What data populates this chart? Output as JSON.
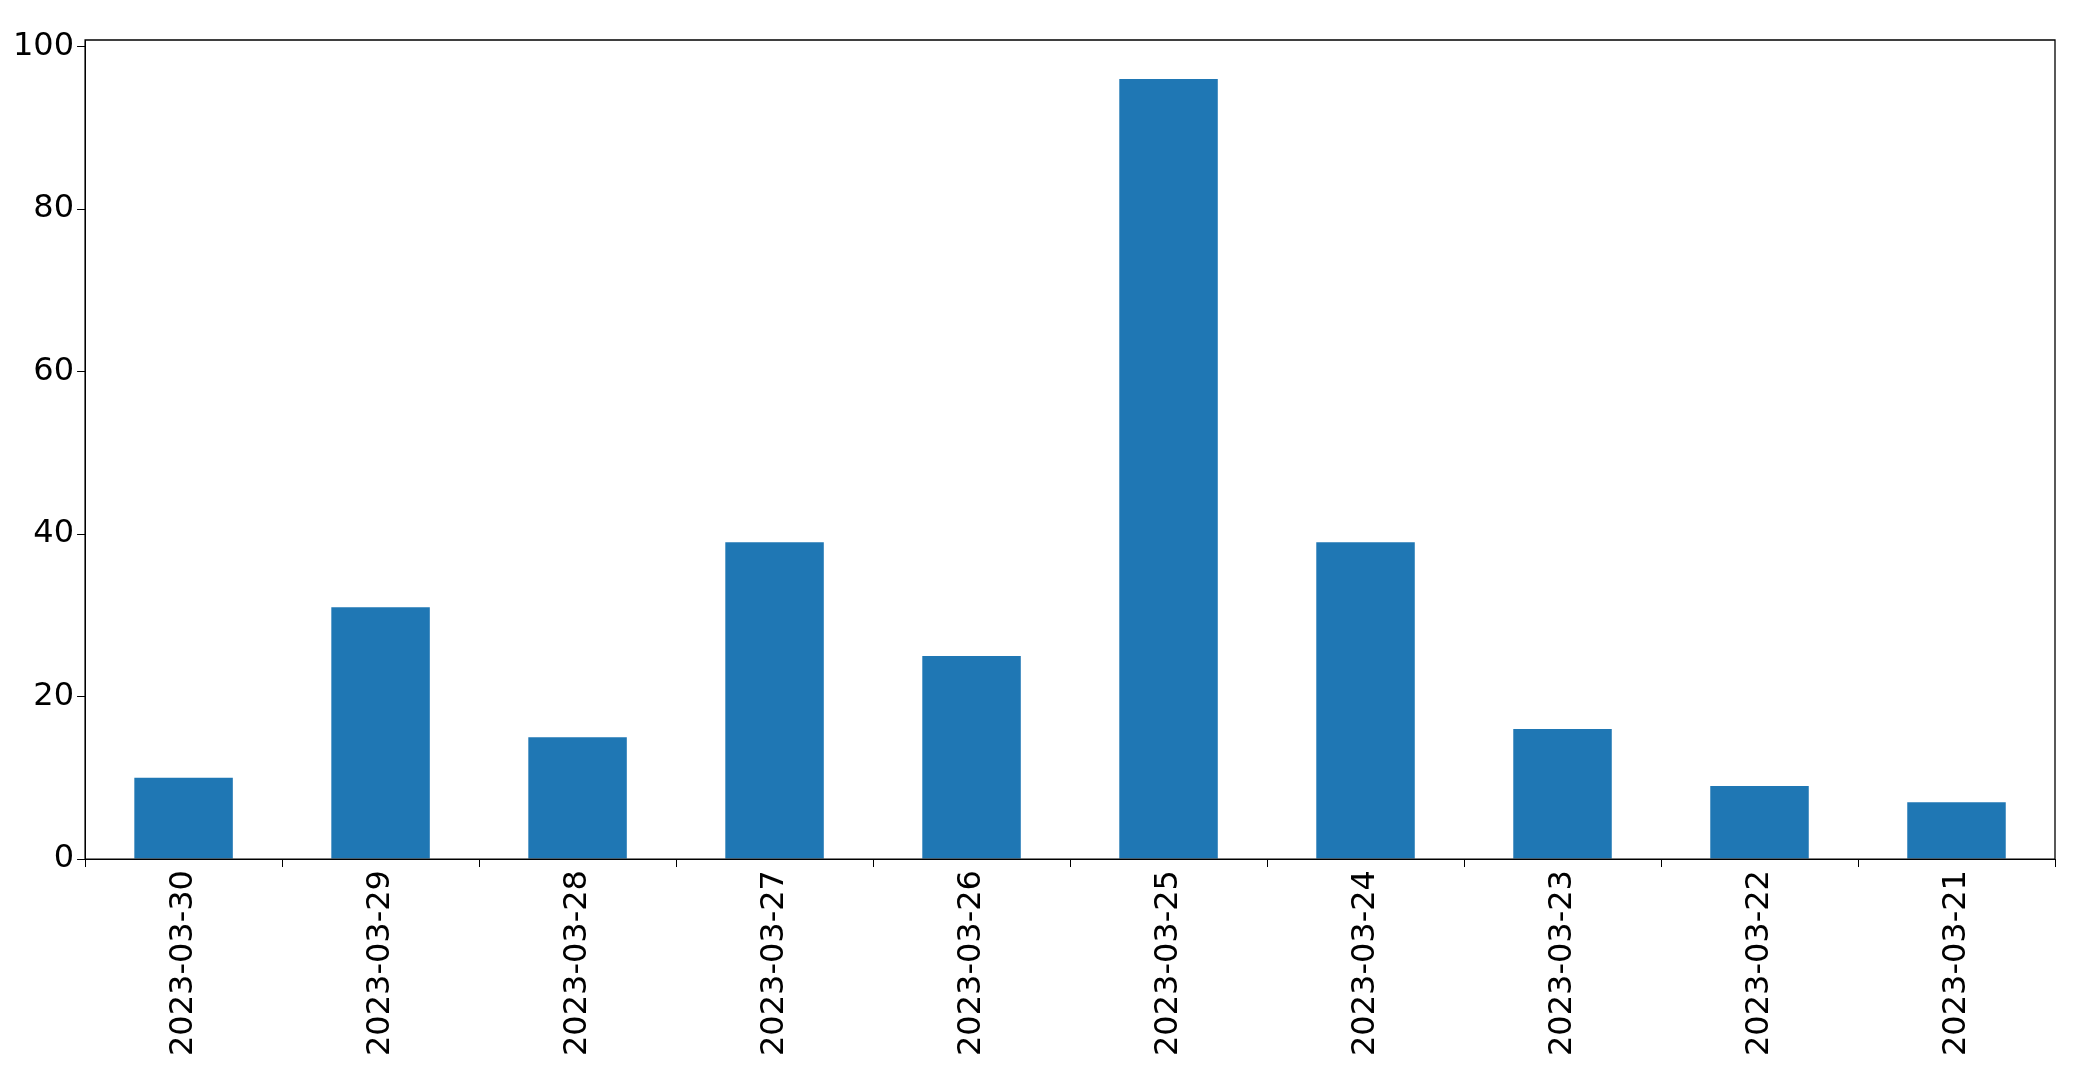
{
  "chart_data": {
    "type": "bar",
    "categories": [
      "2023-03-30",
      "2023-03-29",
      "2023-03-28",
      "2023-03-27",
      "2023-03-26",
      "2023-03-25",
      "2023-03-24",
      "2023-03-23",
      "2023-03-22",
      "2023-03-21"
    ],
    "values": [
      10,
      31,
      15,
      39,
      25,
      96,
      39,
      16,
      9,
      7
    ],
    "color": "#1f77b4",
    "ylim": [
      0,
      100.8
    ],
    "yticks": [
      0,
      20,
      40,
      60,
      80,
      100
    ],
    "grid": false,
    "legend": false
  }
}
